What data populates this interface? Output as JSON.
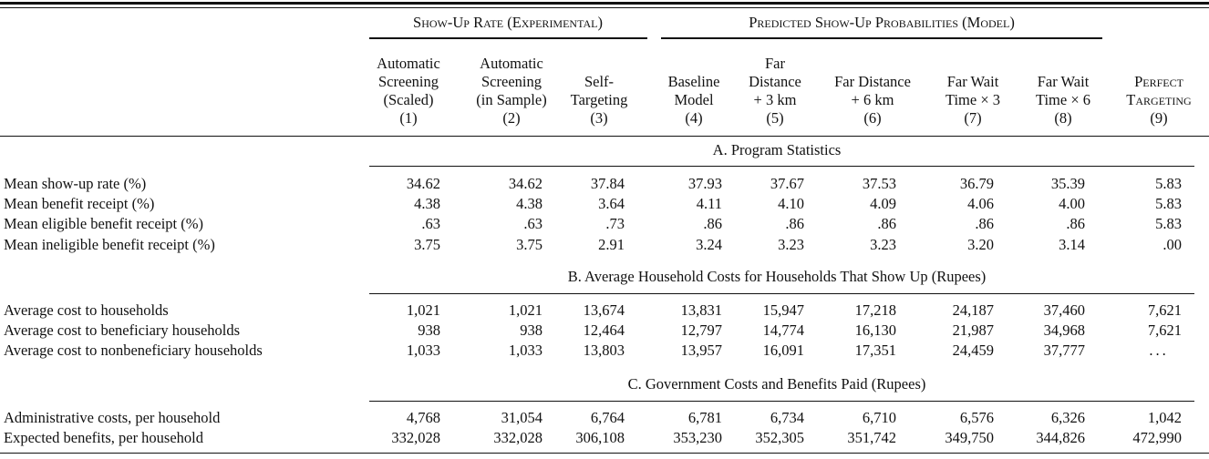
{
  "header": {
    "group_left": "Show-Up Rate (Experimental)",
    "group_right": "Predicted Show-Up Probabilities (Model)",
    "columns": [
      {
        "lines": [
          "Automatic",
          "Screening",
          "(Scaled)",
          "(1)"
        ]
      },
      {
        "lines": [
          "Automatic",
          "Screening",
          "(in Sample)",
          "(2)"
        ]
      },
      {
        "lines": [
          "Self-",
          "Targeting",
          "(3)"
        ]
      },
      {
        "lines": [
          "Baseline",
          "Model",
          "(4)"
        ]
      },
      {
        "lines": [
          "Far",
          "Distance",
          "+ 3 km",
          "(5)"
        ]
      },
      {
        "lines": [
          "Far Distance",
          "+ 6 km",
          "(6)"
        ]
      },
      {
        "lines": [
          "Far Wait",
          "Time × 3",
          "(7)"
        ]
      },
      {
        "lines": [
          "Far Wait",
          "Time × 6",
          "(8)"
        ]
      },
      {
        "lines": [
          "Perfect",
          "Targeting",
          "(9)"
        ]
      }
    ]
  },
  "panels": [
    {
      "title": "A. Program Statistics",
      "rows": [
        {
          "label": "Mean show-up rate (%)",
          "values": [
            "34.62",
            "34.62",
            "37.84",
            "37.93",
            "37.67",
            "37.53",
            "36.79",
            "35.39",
            "5.83"
          ]
        },
        {
          "label": "Mean benefit receipt (%)",
          "values": [
            "4.38",
            "4.38",
            "3.64",
            "4.11",
            "4.10",
            "4.09",
            "4.06",
            "4.00",
            "5.83"
          ]
        },
        {
          "label": "Mean eligible benefit receipt (%)",
          "values": [
            ".63",
            ".63",
            ".73",
            ".86",
            ".86",
            ".86",
            ".86",
            ".86",
            "5.83"
          ]
        },
        {
          "label": "Mean ineligible benefit receipt (%)",
          "values": [
            "3.75",
            "3.75",
            "2.91",
            "3.24",
            "3.23",
            "3.23",
            "3.20",
            "3.14",
            ".00"
          ]
        }
      ]
    },
    {
      "title": "B. Average Household Costs for Households That Show Up (Rupees)",
      "rows": [
        {
          "label": "Average cost to households",
          "values": [
            "1,021",
            "1,021",
            "13,674",
            "13,831",
            "15,947",
            "17,218",
            "24,187",
            "37,460",
            "7,621"
          ]
        },
        {
          "label": "Average cost to beneficiary households",
          "values": [
            "938",
            "938",
            "12,464",
            "12,797",
            "14,774",
            "16,130",
            "21,987",
            "34,968",
            "7,621"
          ]
        },
        {
          "label": "Average cost to nonbeneficiary households",
          "values": [
            "1,033",
            "1,033",
            "13,803",
            "13,957",
            "16,091",
            "17,351",
            "24,459",
            "37,777",
            "..."
          ]
        }
      ]
    },
    {
      "title": "C. Government Costs and Benefits Paid (Rupees)",
      "rows": [
        {
          "label": "Administrative costs, per household",
          "values": [
            "4,768",
            "31,054",
            "6,764",
            "6,781",
            "6,734",
            "6,710",
            "6,576",
            "6,326",
            "1,042"
          ]
        },
        {
          "label": "Expected benefits, per household",
          "values": [
            "332,028",
            "332,028",
            "306,108",
            "353,230",
            "352,305",
            "351,742",
            "349,750",
            "344,826",
            "472,990"
          ]
        }
      ]
    }
  ]
}
